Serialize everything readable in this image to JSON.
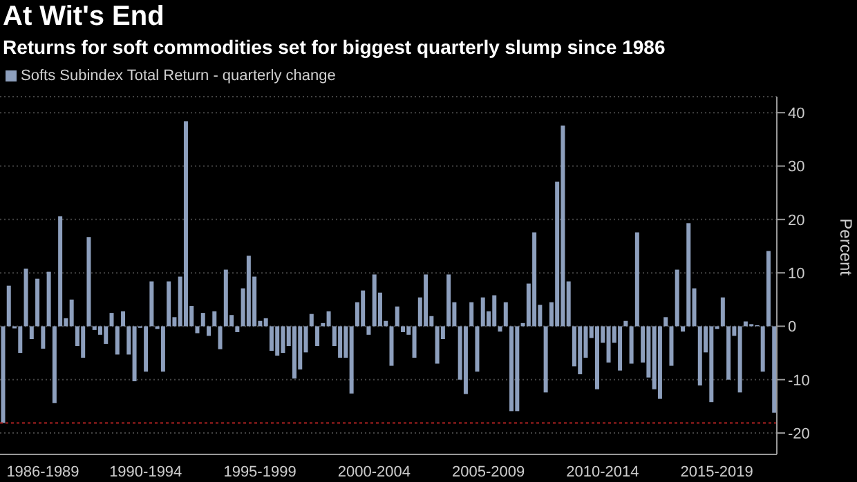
{
  "chart_data": {
    "type": "bar",
    "title": "At Wit's End",
    "subtitle": "Returns for soft commodities set for biggest quarterly slump since 1986",
    "ylabel": "Percent",
    "categories": [
      null,
      null,
      null,
      null,
      null,
      null,
      null,
      "1986-1989",
      null,
      null,
      null,
      null,
      null,
      null,
      null,
      null,
      null,
      null,
      null,
      null,
      null,
      null,
      null,
      null,
      null,
      "1990-1994",
      null,
      null,
      null,
      null,
      null,
      null,
      null,
      null,
      null,
      null,
      null,
      null,
      null,
      null,
      null,
      null,
      null,
      null,
      null,
      "1995-1999",
      null,
      null,
      null,
      null,
      null,
      null,
      null,
      null,
      null,
      null,
      null,
      null,
      null,
      null,
      null,
      null,
      null,
      null,
      null,
      "2000-2004",
      null,
      null,
      null,
      null,
      null,
      null,
      null,
      null,
      null,
      null,
      null,
      null,
      null,
      null,
      null,
      null,
      null,
      null,
      null,
      "2005-2009",
      null,
      null,
      null,
      null,
      null,
      null,
      null,
      null,
      null,
      null,
      null,
      null,
      null,
      null,
      null,
      null,
      null,
      null,
      null,
      "2010-2014",
      null,
      null,
      null,
      null,
      null,
      null,
      null,
      null,
      null,
      null,
      null,
      null,
      null,
      null,
      null,
      null,
      null,
      null,
      null,
      "2015-2019",
      null,
      null,
      null,
      null,
      null,
      null,
      null,
      null,
      null,
      null
    ],
    "series": [
      {
        "name": "Softs Subindex Total Return - quarterly change",
        "color": "#8d9fbd",
        "values": [
          -18.1,
          7.6,
          -0.4,
          -5.0,
          10.8,
          -2.4,
          8.9,
          -4.2,
          10.2,
          -14.4,
          20.6,
          1.5,
          5.0,
          -3.7,
          -5.9,
          16.7,
          -0.7,
          -1.6,
          -3.3,
          2.5,
          -5.3,
          2.8,
          -5.3,
          -10.3,
          -0.3,
          -8.5,
          8.4,
          -0.5,
          -8.5,
          8.4,
          1.7,
          9.3,
          38.4,
          3.8,
          -1.3,
          2.5,
          -1.8,
          2.8,
          -4.3,
          10.6,
          2.1,
          -1.1,
          7.1,
          13.2,
          9.3,
          1.0,
          1.5,
          -4.6,
          -5.5,
          -5.0,
          -3.7,
          -9.8,
          -8.1,
          -4.9,
          2.3,
          -3.7,
          0.6,
          2.8,
          -3.7,
          -5.9,
          -5.9,
          -12.6,
          4.5,
          6.7,
          -1.6,
          9.7,
          6.3,
          1.0,
          -7.4,
          3.7,
          -1.1,
          -1.6,
          -5.9,
          5.4,
          9.7,
          1.9,
          -7.0,
          -2.4,
          9.7,
          4.5,
          -10.0,
          -12.7,
          4.5,
          -8.5,
          5.4,
          2.8,
          5.8,
          -1.0,
          4.5,
          -15.9,
          -15.9,
          0.6,
          8.0,
          17.6,
          4.0,
          -12.4,
          4.5,
          27.1,
          37.6,
          8.4,
          -7.5,
          -9.0,
          -5.9,
          -2.2,
          -11.8,
          -3.1,
          -6.8,
          -3.1,
          -8.3,
          1.0,
          -7.0,
          17.6,
          -6.8,
          -9.6,
          -11.8,
          -13.6,
          1.7,
          -7.4,
          10.6,
          -1.0,
          19.3,
          7.1,
          -11.1,
          -4.9,
          -14.2,
          -0.5,
          5.4,
          -10.0,
          -1.8,
          -12.4,
          0.9,
          0.4,
          0.2,
          -8.5,
          14.1,
          -16.2
        ]
      }
    ],
    "ylim": [
      -24,
      43
    ],
    "yticks": [
      -20,
      -10,
      0,
      10,
      20,
      30,
      40
    ],
    "grid": "y",
    "legend": "top left",
    "ref_lines": [
      {
        "axis": "y",
        "value": -18.1,
        "color": "#b22222",
        "line_style": "dotted"
      }
    ]
  }
}
